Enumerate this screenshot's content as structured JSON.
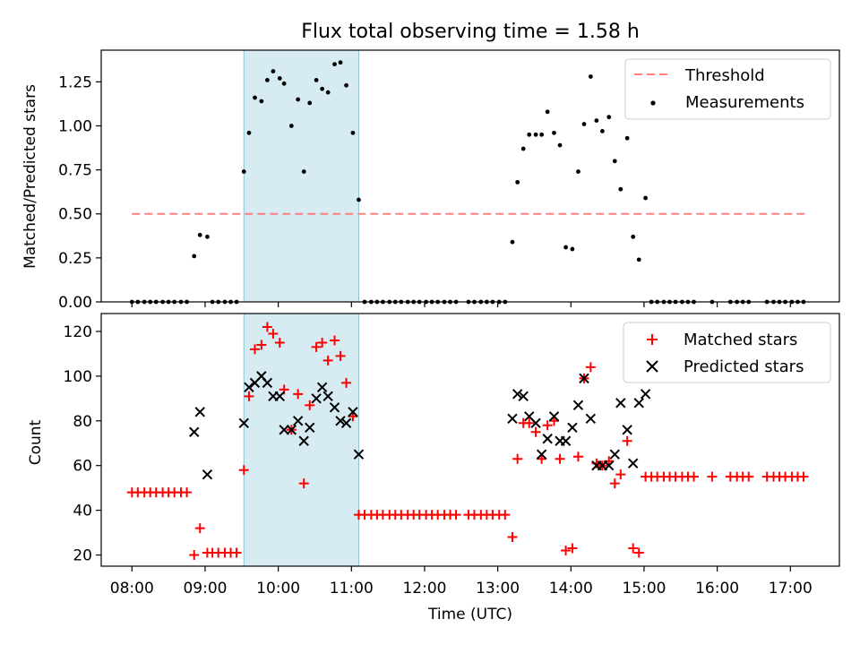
{
  "chart_data": [
    {
      "type": "scatter",
      "title": "Flux total observing time = 1.58 h",
      "xlabel": "",
      "ylabel": "Matched/Predicted stars",
      "xlim_hours": [
        7.58,
        17.67
      ],
      "ylim": [
        0,
        1.43
      ],
      "yticks": [
        "0.00",
        "0.25",
        "0.50",
        "0.75",
        "1.00",
        "1.25"
      ],
      "ytick_values": [
        0,
        0.25,
        0.5,
        0.75,
        1.0,
        1.25
      ],
      "shaded_interval_hours": [
        9.53,
        11.1
      ],
      "shade_color": "#add8e6",
      "legend_position": "upper right",
      "threshold": {
        "name": "Threshold",
        "value": 0.5,
        "x_range": [
          8.0,
          17.2
        ],
        "color": "#ff8080"
      },
      "series": [
        {
          "name": "Measurements",
          "marker": "dot",
          "color": "#000000",
          "x": [
            8.0,
            8.08,
            8.17,
            8.25,
            8.33,
            8.42,
            8.5,
            8.58,
            8.67,
            8.75,
            8.85,
            8.93,
            9.03,
            9.1,
            9.18,
            9.27,
            9.35,
            9.43,
            9.53,
            9.6,
            9.68,
            9.77,
            9.85,
            9.93,
            10.02,
            10.08,
            10.18,
            10.27,
            10.35,
            10.43,
            10.52,
            10.6,
            10.68,
            10.77,
            10.85,
            10.93,
            11.02,
            11.1,
            11.18,
            11.27,
            11.35,
            11.43,
            11.52,
            11.6,
            11.68,
            11.77,
            11.85,
            11.93,
            12.02,
            12.1,
            12.18,
            12.27,
            12.35,
            12.43,
            12.6,
            12.68,
            12.77,
            12.85,
            12.93,
            13.02,
            13.1,
            13.2,
            13.27,
            13.35,
            13.43,
            13.52,
            13.6,
            13.68,
            13.77,
            13.85,
            13.93,
            14.02,
            14.1,
            14.18,
            14.27,
            14.35,
            14.43,
            14.52,
            14.6,
            14.68,
            14.77,
            14.85,
            14.93,
            15.02,
            15.1,
            15.18,
            15.27,
            15.35,
            15.43,
            15.52,
            15.6,
            15.68,
            15.93,
            16.18,
            16.27,
            16.35,
            16.43,
            16.68,
            16.77,
            16.85,
            16.93,
            17.02,
            17.1,
            17.18
          ],
          "y": [
            0,
            0,
            0,
            0,
            0,
            0,
            0,
            0,
            0,
            0,
            0.26,
            0.38,
            0.37,
            0,
            0,
            0,
            0,
            0,
            0.74,
            0.96,
            1.16,
            1.14,
            1.26,
            1.31,
            1.27,
            1.24,
            1.0,
            1.15,
            0.74,
            1.13,
            1.26,
            1.21,
            1.19,
            1.35,
            1.36,
            1.23,
            0.96,
            0.58,
            0,
            0,
            0,
            0,
            0,
            0,
            0,
            0,
            0,
            0,
            0,
            0,
            0,
            0,
            0,
            0,
            0,
            0,
            0,
            0,
            0,
            0,
            0,
            0.34,
            0.68,
            0.87,
            0.95,
            0.95,
            0.95,
            1.08,
            0.96,
            0.89,
            0.31,
            0.3,
            0.74,
            1.01,
            1.28,
            1.03,
            0.97,
            1.05,
            0.8,
            0.64,
            0.93,
            0.37,
            0.24,
            0.59,
            0,
            0,
            0,
            0,
            0,
            0,
            0,
            0,
            0,
            0,
            0,
            0,
            0,
            0,
            0,
            0,
            0,
            0,
            0,
            0
          ]
        }
      ]
    },
    {
      "type": "scatter",
      "title": "",
      "xlabel": "Time (UTC)",
      "ylabel": "Count",
      "xlim_hours": [
        7.58,
        17.67
      ],
      "ylim": [
        15,
        128
      ],
      "xticks": [
        "08:00",
        "09:00",
        "10:00",
        "11:00",
        "12:00",
        "13:00",
        "14:00",
        "15:00",
        "16:00",
        "17:00"
      ],
      "xtick_values": [
        8,
        9,
        10,
        11,
        12,
        13,
        14,
        15,
        16,
        17
      ],
      "yticks": [
        "20",
        "40",
        "60",
        "80",
        "100",
        "120"
      ],
      "ytick_values": [
        20,
        40,
        60,
        80,
        100,
        120
      ],
      "shaded_interval_hours": [
        9.53,
        11.1
      ],
      "shade_color": "#add8e6",
      "legend_position": "upper right",
      "series": [
        {
          "name": "Matched stars",
          "marker": "plus",
          "color": "#ff0000",
          "x": [
            8.0,
            8.08,
            8.17,
            8.25,
            8.33,
            8.42,
            8.5,
            8.58,
            8.67,
            8.75,
            8.85,
            8.93,
            9.03,
            9.1,
            9.18,
            9.27,
            9.35,
            9.43,
            9.53,
            9.6,
            9.68,
            9.77,
            9.85,
            9.93,
            10.02,
            10.08,
            10.18,
            10.27,
            10.35,
            10.43,
            10.52,
            10.6,
            10.68,
            10.77,
            10.85,
            10.93,
            11.02,
            11.1,
            11.18,
            11.27,
            11.35,
            11.43,
            11.52,
            11.6,
            11.68,
            11.77,
            11.85,
            11.93,
            12.02,
            12.1,
            12.18,
            12.27,
            12.35,
            12.43,
            12.6,
            12.68,
            12.77,
            12.85,
            12.93,
            13.02,
            13.1,
            13.2,
            13.27,
            13.35,
            13.43,
            13.52,
            13.6,
            13.68,
            13.77,
            13.85,
            13.93,
            14.02,
            14.1,
            14.18,
            14.27,
            14.35,
            14.43,
            14.52,
            14.6,
            14.68,
            14.77,
            14.85,
            14.93,
            15.02,
            15.1,
            15.18,
            15.27,
            15.35,
            15.43,
            15.52,
            15.6,
            15.68,
            15.93,
            16.18,
            16.27,
            16.35,
            16.43,
            16.68,
            16.77,
            16.85,
            16.93,
            17.02,
            17.1,
            17.18
          ],
          "y": [
            48,
            48,
            48,
            48,
            48,
            48,
            48,
            48,
            48,
            48,
            20,
            32,
            21,
            21,
            21,
            21,
            21,
            21,
            58,
            91,
            112,
            114,
            122,
            119,
            115,
            94,
            76,
            92,
            52,
            87,
            113,
            115,
            107,
            116,
            109,
            97,
            82,
            38,
            38,
            38,
            38,
            38,
            38,
            38,
            38,
            38,
            38,
            38,
            38,
            38,
            38,
            38,
            38,
            38,
            38,
            38,
            38,
            38,
            38,
            38,
            38,
            28,
            63,
            79,
            79,
            75,
            63,
            78,
            80,
            63,
            22,
            23,
            64,
            99,
            104,
            61,
            60,
            62,
            52,
            56,
            71,
            23,
            21,
            55,
            55,
            55,
            55,
            55,
            55,
            55,
            55,
            55,
            55,
            55,
            55,
            55,
            55,
            55,
            55,
            55,
            55,
            55,
            55,
            55
          ]
        },
        {
          "name": "Predicted stars",
          "marker": "x",
          "color": "#000000",
          "x": [
            8.85,
            8.93,
            9.03,
            9.53,
            9.6,
            9.68,
            9.77,
            9.85,
            9.93,
            10.02,
            10.08,
            10.18,
            10.27,
            10.35,
            10.43,
            10.52,
            10.6,
            10.68,
            10.77,
            10.85,
            10.93,
            11.02,
            11.1,
            13.2,
            13.27,
            13.35,
            13.43,
            13.52,
            13.6,
            13.68,
            13.77,
            13.85,
            13.93,
            14.02,
            14.1,
            14.18,
            14.27,
            14.35,
            14.43,
            14.52,
            14.6,
            14.68,
            14.77,
            14.85,
            14.93,
            15.02
          ],
          "y": [
            75,
            84,
            56,
            79,
            95,
            97,
            100,
            97,
            91,
            91,
            76,
            76,
            80,
            71,
            77,
            90,
            95,
            91,
            86,
            80,
            79,
            84,
            65,
            81,
            92,
            91,
            82,
            79,
            65,
            72,
            82,
            71,
            71,
            77,
            87,
            99,
            81,
            60,
            60,
            60,
            65,
            88,
            76,
            61,
            88,
            92
          ]
        }
      ]
    }
  ]
}
